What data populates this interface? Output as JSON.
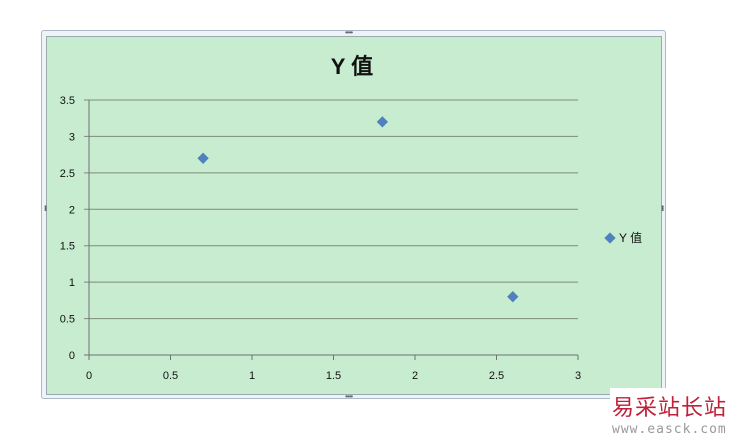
{
  "chart_data": {
    "type": "scatter",
    "title": "Y 值",
    "xlabel": "",
    "ylabel": "",
    "xlim": [
      0,
      3
    ],
    "ylim": [
      0,
      3.5
    ],
    "x_ticks": [
      "0",
      "0.5",
      "1",
      "1.5",
      "2",
      "2.5",
      "3"
    ],
    "y_ticks": [
      "0",
      "0.5",
      "1",
      "1.5",
      "2",
      "2.5",
      "3",
      "3.5"
    ],
    "grid": "horizontal",
    "legend_position": "right",
    "series": [
      {
        "name": "Y 值",
        "marker": "diamond",
        "color": "#4f81bd",
        "points": [
          {
            "x": 0.7,
            "y": 2.7
          },
          {
            "x": 1.8,
            "y": 3.2
          },
          {
            "x": 2.6,
            "y": 0.8
          }
        ]
      }
    ],
    "background_color": "#c8ecd0",
    "gridline_color": "#7f8a7a"
  },
  "watermark": {
    "name": "易采站长站",
    "url": "www.easck.com"
  }
}
